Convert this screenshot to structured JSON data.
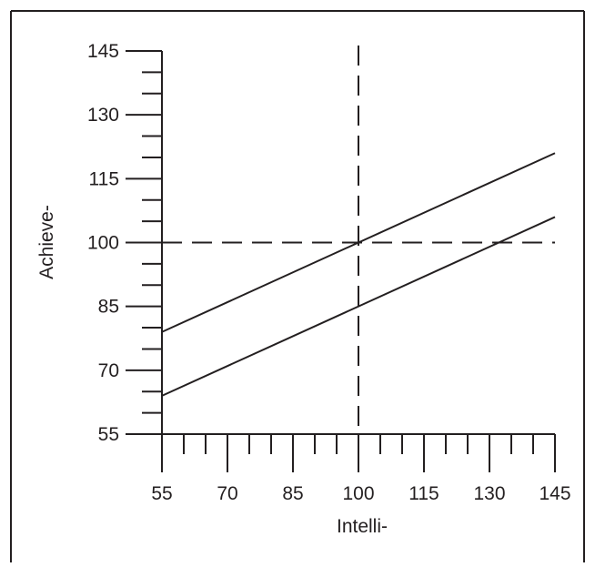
{
  "chart_data": {
    "type": "line",
    "title": "",
    "xlabel": "Intelli-",
    "ylabel": "Achieve-",
    "xlim": [
      55,
      145
    ],
    "ylim": [
      55,
      145
    ],
    "x_ticks": [
      55,
      70,
      85,
      100,
      115,
      130,
      145
    ],
    "y_ticks": [
      55,
      70,
      85,
      100,
      115,
      130,
      145
    ],
    "x_tick_labels": [
      "55",
      "70",
      "85",
      "100",
      "115",
      "130",
      "145"
    ],
    "y_tick_labels": [
      "55",
      "70",
      "85",
      "100",
      "115",
      "130",
      "145"
    ],
    "x_minor_step": 5,
    "y_minor_step": 5,
    "grid": false,
    "legend": "none",
    "series": [
      {
        "style": "solid",
        "x": [
          55,
          145
        ],
        "y": [
          79,
          121
        ]
      },
      {
        "style": "solid",
        "x": [
          55,
          145
        ],
        "y": [
          64,
          106
        ]
      }
    ],
    "reference_lines": [
      {
        "orientation": "vertical",
        "value": 100,
        "style": "dashed"
      },
      {
        "orientation": "horizontal",
        "value": 100,
        "style": "dashed"
      }
    ],
    "colors": {
      "ink": "#231f20",
      "background": "#ffffff"
    }
  }
}
